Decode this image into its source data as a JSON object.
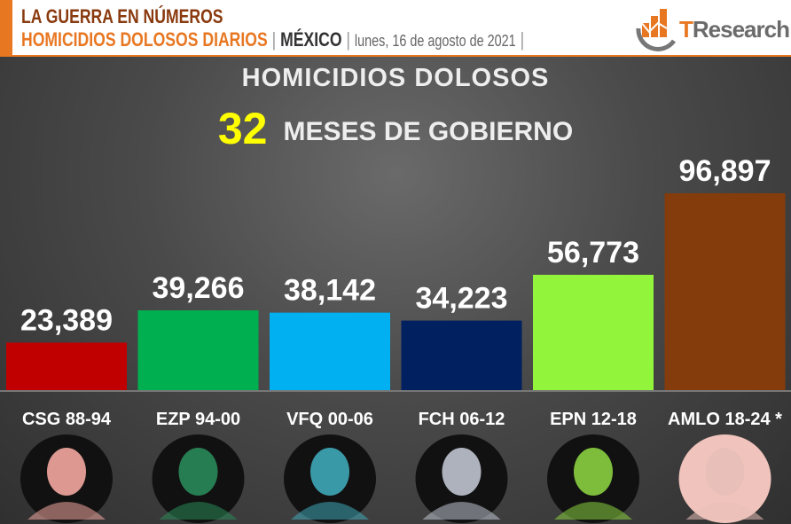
{
  "header": {
    "line1": "LA GUERRA EN NÚMEROS",
    "line2_main": "HOMICIDIOS DOLOSOS DIARIOS",
    "separator": "|",
    "country": "MÉXICO",
    "date": "lunes, 16 de agosto de 2021",
    "logo_text_t": "T",
    "logo_text_rest": "Research"
  },
  "colors": {
    "accent": "#e87722",
    "title_dark": "#8a3a0f",
    "highlight": "#ffff00"
  },
  "chart_data": {
    "type": "bar",
    "title": "HOMICIDIOS DOLOSOS",
    "subtitle_number": "32",
    "subtitle_text": "MESES DE GOBIERNO",
    "categories": [
      "CSG 88-94",
      "EZP 94-00",
      "VFQ 00-06",
      "FCH 06-12",
      "EPN 12-18",
      "AMLO 18-24 *"
    ],
    "values": [
      23389,
      39266,
      38142,
      34223,
      56773,
      96897
    ],
    "value_labels": [
      "23,389",
      "39,266",
      "38,142",
      "34,223",
      "56,773",
      "96,897"
    ],
    "colors": [
      "#c00000",
      "#00b050",
      "#00b0f0",
      "#002060",
      "#92f53b",
      "#843c0c"
    ],
    "portrait_tints": [
      "#f4a8a0",
      "#2a8a5a",
      "#3fa8b8",
      "#c0c4d0",
      "#8ad040",
      "#e8c0b8"
    ],
    "ylim": [
      0,
      96897
    ],
    "grid": false,
    "legend": "none"
  }
}
